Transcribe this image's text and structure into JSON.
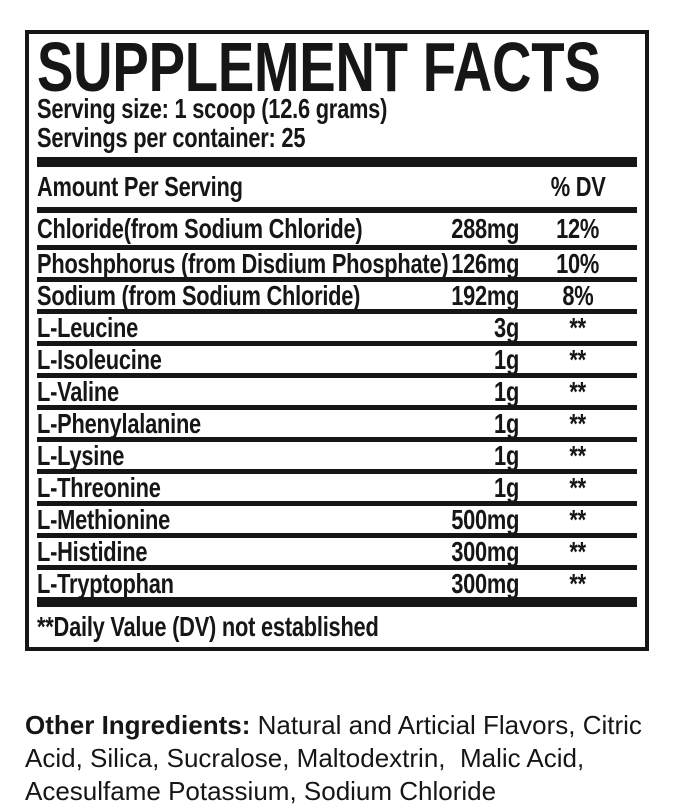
{
  "panel": {
    "title": "SUPPLEMENT FACTS",
    "serving_size": "Serving size: 1 scoop (12.6 grams)",
    "servings_per_container": "Servings per container: 25",
    "columns": {
      "amount_per_serving": "Amount Per Serving",
      "percent_dv": "% DV"
    },
    "rows": [
      {
        "name": "Chloride(from Sodium Chloride)",
        "amount": "288mg",
        "dv": "12%"
      },
      {
        "name": "Phoshphorus (from Disdium Phosphate)",
        "amount": "126mg",
        "dv": "10%"
      },
      {
        "name": "Sodium (from Sodium Chloride)",
        "amount": "192mg",
        "dv": "8%"
      },
      {
        "name": "L-Leucine",
        "amount": "3g",
        "dv": "**"
      },
      {
        "name": "L-Isoleucine",
        "amount": "1g",
        "dv": "**"
      },
      {
        "name": "L-Valine",
        "amount": "1g",
        "dv": "**"
      },
      {
        "name": "L-Phenylalanine",
        "amount": "1g",
        "dv": "**"
      },
      {
        "name": "L-Lysine",
        "amount": "1g",
        "dv": "**"
      },
      {
        "name": "L-Threonine",
        "amount": "1g",
        "dv": "**"
      },
      {
        "name": "L-Methionine",
        "amount": "500mg",
        "dv": "**"
      },
      {
        "name": "L-Histidine",
        "amount": "300mg",
        "dv": "**"
      },
      {
        "name": "L-Tryptophan",
        "amount": "300mg",
        "dv": "**"
      }
    ],
    "footnote": "**Daily Value (DV) not established",
    "other_ingredients": {
      "label": "Other Ingredients:",
      "text": " Natural and Articial Flavors, Citric Acid, Silica, Sucralose, Maltodextrin,  Malic Acid, Acesulfame Potassium, Sodium Chloride"
    },
    "colors": {
      "ink": "#161616",
      "background": "#ffffff"
    }
  }
}
